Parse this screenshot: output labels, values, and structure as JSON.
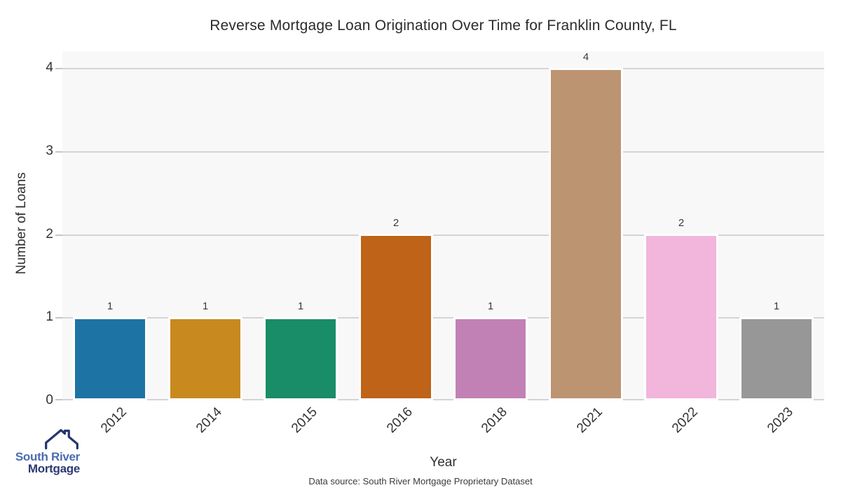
{
  "title": "Reverse Mortgage Loan Origination Over Time for Franklin County, FL",
  "chart_data": {
    "type": "bar",
    "title": "Reverse Mortgage Loan Origination Over Time for Franklin County, FL",
    "categories": [
      "2012",
      "2014",
      "2015",
      "2016",
      "2018",
      "2021",
      "2022",
      "2023"
    ],
    "values": [
      1,
      1,
      1,
      2,
      1,
      4,
      2,
      1
    ],
    "bar_labels": [
      "1",
      "1",
      "1",
      "2",
      "1",
      "4",
      "2",
      "1"
    ],
    "bar_colors": [
      "#1d73a4",
      "#c8891f",
      "#198c68",
      "#bf6318",
      "#c281b4",
      "#bd9471",
      "#f2b5db",
      "#979797"
    ],
    "xlabel": "Year",
    "ylabel": "Number of Loans",
    "yticks": [
      0,
      1,
      2,
      3,
      4
    ],
    "ylim": [
      0,
      4.2
    ],
    "grid": "horizontal",
    "legend": "none",
    "plot_bg": "#f8f8f8",
    "gridline_color": "#d4d4d4"
  },
  "footer": {
    "caption": "Data source: South River Mortgage Proprietary Dataset"
  },
  "logo": {
    "line1": "South River",
    "line2": "Mortgage",
    "line1_color": "#4a6cb0",
    "line2_color": "#2c3a72",
    "icon_color": "#27356b",
    "icon": "house-roof-icon"
  }
}
